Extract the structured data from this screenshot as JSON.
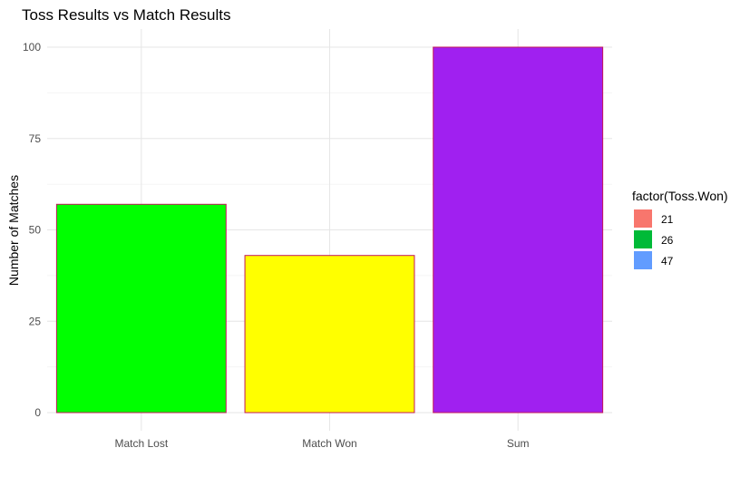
{
  "chart_data": {
    "type": "bar",
    "title": "Toss Results vs Match Results",
    "xlabel": "",
    "ylabel": "Number of Matches",
    "categories": [
      "Match Lost",
      "Match Won",
      "Sum"
    ],
    "values": [
      57,
      43,
      100
    ],
    "bar_colors": [
      "#00ff00",
      "#ffff00",
      "#a020f0"
    ],
    "bar_outline_color": "#c2185b",
    "ylim": [
      0,
      105
    ],
    "y_ticks": [
      0,
      25,
      50,
      75,
      100
    ],
    "y_tick_labels": [
      "0",
      "25",
      "50",
      "75",
      "100"
    ],
    "grid": true,
    "legend": {
      "position": "right",
      "title": "factor(Toss.Won)",
      "items": [
        {
          "label": "21",
          "color": "#f8766d"
        },
        {
          "label": "26",
          "color": "#00ba38"
        },
        {
          "label": "47",
          "color": "#619cff"
        }
      ]
    }
  }
}
